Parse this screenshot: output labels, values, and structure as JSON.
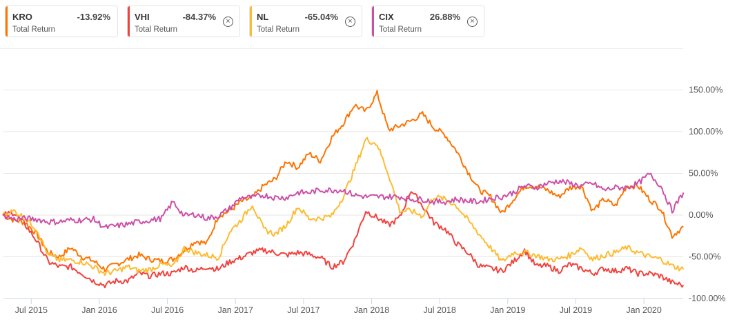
{
  "legend": [
    {
      "symbol": "KRO",
      "value": "-13.92%",
      "label": "Total Return",
      "color": "#ff7300",
      "closable": false
    },
    {
      "symbol": "VHI",
      "value": "-84.37%",
      "label": "Total Return",
      "color": "#f2413d",
      "closable": true
    },
    {
      "symbol": "NL",
      "value": "-65.04%",
      "label": "Total Return",
      "color": "#fdbb30",
      "closable": true
    },
    {
      "symbol": "CIX",
      "value": "26.88%",
      "label": "Total Return",
      "color": "#cc4fa6",
      "closable": true
    }
  ],
  "chart_data": {
    "type": "line",
    "title": "",
    "xlabel": "",
    "ylabel": "Total Return",
    "x_start": "Apr 2015",
    "x_unit": "month",
    "x_ticks": [
      "Jul 2015",
      "Jan 2016",
      "Jul 2016",
      "Jan 2017",
      "Jul 2017",
      "Jan 2018",
      "Jul 2018",
      "Jan 2019",
      "Jul 2019",
      "Jan 2020"
    ],
    "x_tick_months": [
      3,
      9,
      15,
      21,
      27,
      33,
      39,
      45,
      51,
      57
    ],
    "y_ticks": [
      "150.00%",
      "100.00%",
      "50.00%",
      "0.00%",
      "-50.00%",
      "-100.00%"
    ],
    "y_tick_values": [
      150,
      100,
      50,
      0,
      -50,
      -100
    ],
    "ylim": [
      -100,
      150
    ],
    "grid": true,
    "series": [
      {
        "name": "KRO",
        "color": "#ff7300",
        "values": [
          0,
          -6,
          -9,
          -23,
          -45,
          -50,
          -39,
          -50,
          -55,
          -65,
          -59,
          -53,
          -48,
          -53,
          -55,
          -53,
          -42,
          -31,
          -34,
          -1,
          5,
          16,
          21,
          35,
          43,
          65,
          57,
          74,
          65,
          93,
          110,
          132,
          124,
          146,
          102,
          107,
          113,
          121,
          105,
          96,
          77,
          52,
          30,
          22,
          2,
          19,
          35,
          35,
          30,
          22,
          33,
          35,
          5,
          19,
          11,
          35,
          35,
          19,
          8,
          -25,
          -14
        ]
      },
      {
        "name": "VHI",
        "color": "#f2413d",
        "values": [
          0,
          3,
          -12,
          -31,
          -56,
          -62,
          -62,
          -70,
          -79,
          -84,
          -79,
          -79,
          -70,
          -73,
          -70,
          -70,
          -62,
          -67,
          -62,
          -65,
          -56,
          -51,
          -45,
          -42,
          -45,
          -48,
          -45,
          -47,
          -51,
          -62,
          -56,
          -31,
          5,
          -3,
          -12,
          -3,
          30,
          11,
          -9,
          -17,
          -34,
          -45,
          -61,
          -64,
          -67,
          -56,
          -42,
          -61,
          -61,
          -67,
          -59,
          -64,
          -70,
          -64,
          -67,
          -64,
          -70,
          -70,
          -73,
          -81,
          -84
        ]
      },
      {
        "name": "NL",
        "color": "#fdbb30",
        "values": [
          0,
          5,
          -4,
          -17,
          -48,
          -54,
          -54,
          -56,
          -62,
          -70,
          -67,
          -62,
          -67,
          -65,
          -59,
          -62,
          -40,
          -45,
          -48,
          -51,
          -20,
          -6,
          13,
          -17,
          -23,
          -12,
          10,
          -4,
          -4,
          -1,
          22,
          55,
          91,
          85,
          49,
          5,
          5,
          -1,
          22,
          19,
          11,
          -6,
          -23,
          -39,
          -56,
          -45,
          -45,
          -48,
          -53,
          -53,
          -48,
          -39,
          -53,
          -48,
          -45,
          -39,
          -45,
          -50,
          -53,
          -61,
          -65
        ]
      },
      {
        "name": "CIX",
        "color": "#cc4fa6",
        "values": [
          0,
          -5,
          -4,
          -5,
          -8,
          -8,
          -6,
          -6,
          -5,
          -15,
          -13,
          -11,
          -8,
          -6,
          -4,
          16,
          -1,
          1,
          -4,
          -1,
          8,
          21,
          21,
          24,
          21,
          21,
          27,
          27,
          30,
          30,
          30,
          24,
          22,
          22,
          22,
          22,
          19,
          19,
          16,
          16,
          19,
          17,
          16,
          20,
          22,
          27,
          35,
          33,
          38,
          41,
          38,
          35,
          38,
          30,
          33,
          33,
          38,
          49,
          35,
          5,
          27
        ]
      }
    ]
  }
}
